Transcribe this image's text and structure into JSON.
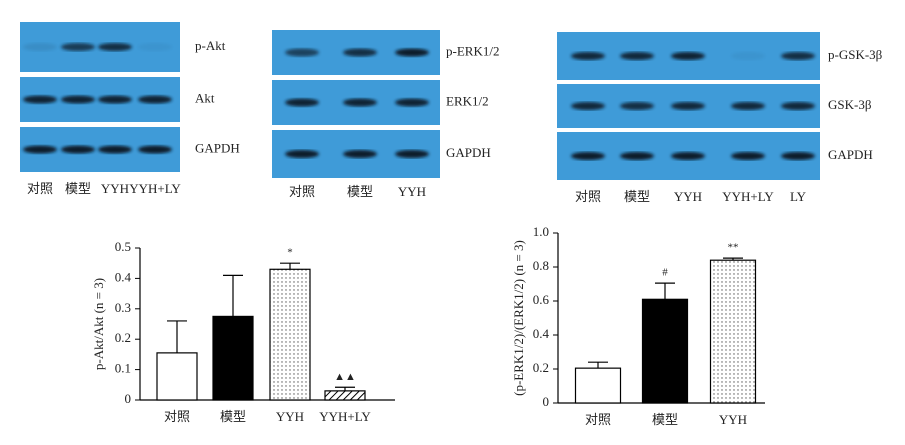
{
  "blots": [
    {
      "rows": [
        "p-Akt",
        "Akt",
        "GAPDH"
      ],
      "lanes": [
        "对照",
        "模型",
        "YYH",
        "YYH+LY"
      ]
    },
    {
      "rows": [
        "p-ERK1/2",
        "ERK1/2",
        "GAPDH"
      ],
      "lanes": [
        "对照",
        "模型",
        "YYH"
      ]
    },
    {
      "rows": [
        "p-GSK-3β",
        "GSK-3β",
        "GAPDH"
      ],
      "lanes": [
        "对照",
        "模型",
        "YYH",
        "YYH+LY",
        "LY"
      ]
    }
  ],
  "chart_data": [
    {
      "type": "bar",
      "ylabel": "p-Akt/Akt (n = 3)",
      "categories": [
        "对照",
        "模型",
        "YYH",
        "YYH+LY"
      ],
      "values": [
        0.155,
        0.275,
        0.43,
        0.03
      ],
      "errors": [
        0.105,
        0.135,
        0.02,
        0.012
      ],
      "markers": [
        null,
        null,
        "*",
        "▲▲"
      ],
      "fills": [
        "white",
        "black",
        "dots",
        "hatch"
      ],
      "ylim": [
        0,
        0.5
      ],
      "yticks": [
        0,
        0.1,
        0.2,
        0.3,
        0.4,
        0.5
      ]
    },
    {
      "type": "bar",
      "ylabel": "(p-ERK1/2)/(ERK1/2) (n = 3)",
      "categories": [
        "对照",
        "模型",
        "YYH"
      ],
      "values": [
        0.205,
        0.61,
        0.84
      ],
      "errors": [
        0.035,
        0.095,
        0.012
      ],
      "markers": [
        null,
        "#",
        "**"
      ],
      "fills": [
        "white",
        "black",
        "dots"
      ],
      "ylim": [
        0,
        1
      ],
      "yticks": [
        0,
        0.2,
        0.4,
        0.6,
        0.8,
        {
          "value": 1,
          "label": "1.0"
        }
      ]
    }
  ]
}
